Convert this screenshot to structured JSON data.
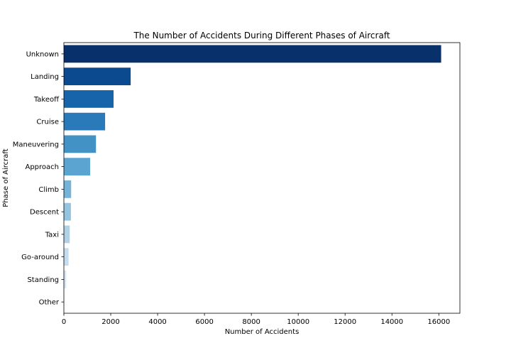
{
  "chart_data": {
    "type": "bar",
    "orientation": "horizontal",
    "title": "The Number of Accidents During Different Phases of Aircraft",
    "xlabel": "Number of Accidents",
    "ylabel": "Phase of Aircraft",
    "categories": [
      "Unknown",
      "Landing",
      "Takeoff",
      "Cruise",
      "Maneuvering",
      "Approach",
      "Climb",
      "Descent",
      "Taxi",
      "Go-around",
      "Standing",
      "Other"
    ],
    "values": [
      16100,
      2850,
      2120,
      1760,
      1370,
      1120,
      310,
      300,
      250,
      200,
      100,
      10
    ],
    "colors": [
      "#08306b",
      "#0b4a8f",
      "#1764ab",
      "#2a7ab9",
      "#4292c6",
      "#5ba3d0",
      "#75b4d8",
      "#94c4df",
      "#b0d2e7",
      "#c5dcef",
      "#d9e7f5",
      "#e7f0fa"
    ],
    "xlim": [
      0,
      16900
    ],
    "xticks": [
      0,
      2000,
      4000,
      6000,
      8000,
      10000,
      12000,
      14000,
      16000
    ],
    "grid": false,
    "legend": "none"
  }
}
